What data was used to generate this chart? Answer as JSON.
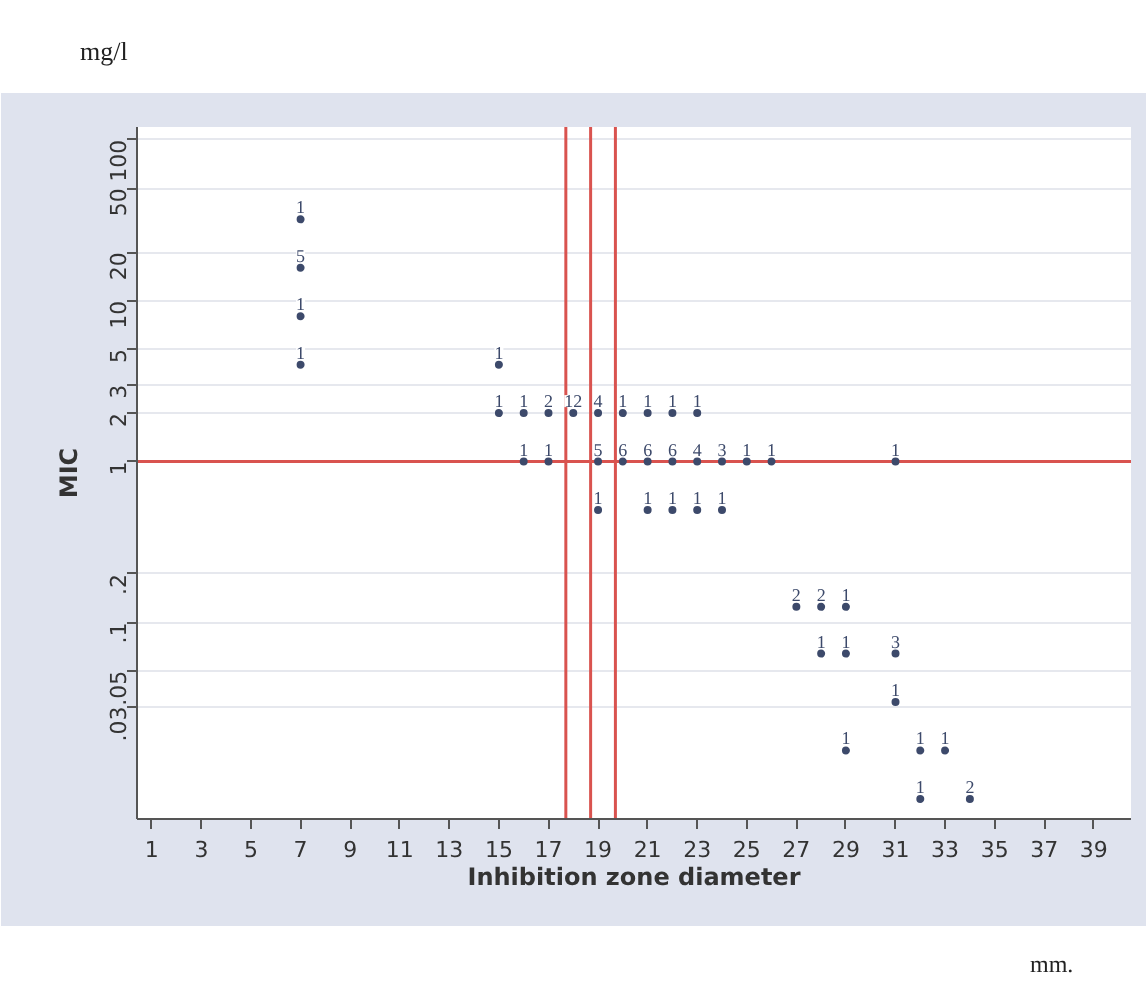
{
  "chart_data": {
    "type": "scatter",
    "xlabel": "Inhibition zone diameter",
    "ylabel": "MIC",
    "annotations": [
      "mg/l",
      "mm.",
      {
        "text": "1",
        "x": 7,
        "y": 32
      },
      {
        "text": "5",
        "x": 7,
        "y": 16
      },
      {
        "text": "1",
        "x": 7,
        "y": 8
      },
      {
        "text": "1",
        "x": 7,
        "y": 4
      },
      {
        "text": "1",
        "x": 15,
        "y": 4
      },
      {
        "text": "1",
        "x": 15,
        "y": 2
      },
      {
        "text": "1",
        "x": 16,
        "y": 2
      },
      {
        "text": "2",
        "x": 17,
        "y": 2
      },
      {
        "text": "12",
        "x": 18,
        "y": 2
      },
      {
        "text": "4",
        "x": 19,
        "y": 2
      },
      {
        "text": "1",
        "x": 20,
        "y": 2
      },
      {
        "text": "1",
        "x": 21,
        "y": 2
      },
      {
        "text": "1",
        "x": 22,
        "y": 2
      },
      {
        "text": "1",
        "x": 23,
        "y": 2
      },
      {
        "text": "1",
        "x": 16,
        "y": 1
      },
      {
        "text": "1",
        "x": 17,
        "y": 1
      },
      {
        "text": "5",
        "x": 19,
        "y": 1
      },
      {
        "text": "6",
        "x": 20,
        "y": 1
      },
      {
        "text": "6",
        "x": 21,
        "y": 1
      },
      {
        "text": "6",
        "x": 22,
        "y": 1
      },
      {
        "text": "4",
        "x": 23,
        "y": 1
      },
      {
        "text": "3",
        "x": 24,
        "y": 1
      },
      {
        "text": "1",
        "x": 25,
        "y": 1
      },
      {
        "text": "1",
        "x": 26,
        "y": 1
      },
      {
        "text": "1",
        "x": 31,
        "y": 1
      },
      {
        "text": "1",
        "x": 19,
        "y": 0.5
      },
      {
        "text": "1",
        "x": 21,
        "y": 0.5
      },
      {
        "text": "1",
        "x": 22,
        "y": 0.5
      },
      {
        "text": "1",
        "x": 23,
        "y": 0.5
      },
      {
        "text": "1",
        "x": 24,
        "y": 0.5
      },
      {
        "text": "2",
        "x": 27,
        "y": 0.125
      },
      {
        "text": "2",
        "x": 28,
        "y": 0.125
      },
      {
        "text": "1",
        "x": 29,
        "y": 0.125
      },
      {
        "text": "1",
        "x": 28,
        "y": 0.064
      },
      {
        "text": "1",
        "x": 29,
        "y": 0.064
      },
      {
        "text": "3",
        "x": 31,
        "y": 0.064
      },
      {
        "text": "1",
        "x": 31,
        "y": 0.032
      },
      {
        "text": "1",
        "x": 29,
        "y": 0.016
      },
      {
        "text": "1",
        "x": 32,
        "y": 0.016
      },
      {
        "text": "1",
        "x": 33,
        "y": 0.016
      },
      {
        "text": "1",
        "x": 32,
        "y": 0.008
      },
      {
        "text": "2",
        "x": 34,
        "y": 0.008
      }
    ],
    "x": [
      7,
      7,
      7,
      7,
      15,
      15,
      16,
      17,
      18,
      19,
      20,
      21,
      22,
      23,
      16,
      17,
      19,
      20,
      21,
      22,
      23,
      24,
      25,
      26,
      31,
      19,
      21,
      22,
      23,
      24,
      27,
      28,
      29,
      28,
      29,
      31,
      31,
      29,
      32,
      33,
      32,
      34
    ],
    "values": [
      32,
      16,
      8,
      4,
      4,
      2,
      2,
      2,
      2,
      2,
      2,
      2,
      2,
      2,
      1,
      1,
      1,
      1,
      1,
      1,
      1,
      1,
      1,
      1,
      1,
      0.5,
      0.5,
      0.5,
      0.5,
      0.5,
      0.125,
      0.125,
      0.125,
      0.064,
      0.064,
      0.064,
      0.032,
      0.016,
      0.016,
      0.016,
      0.008,
      0.008
    ],
    "color": "#3d4a6b",
    "marker": "circle",
    "log": "y",
    "xlim": [
      0.4,
      40.5
    ],
    "ylim": [
      0.006,
      120
    ],
    "xticks": [
      1,
      3,
      5,
      7,
      9,
      11,
      13,
      15,
      17,
      19,
      21,
      23,
      25,
      27,
      29,
      31,
      33,
      35,
      37,
      39
    ],
    "yticks": [
      {
        "value": 0.03,
        "label": ".03"
      },
      {
        "value": 0.05,
        "label": ".05"
      },
      {
        "value": 0.1,
        "label": ".1"
      },
      {
        "value": 0.2,
        "label": ".2"
      },
      1,
      2,
      3,
      5,
      10,
      20,
      50,
      100
    ],
    "grid": "y",
    "ref_lines": [
      {
        "axis": "y",
        "value": 1,
        "color": "#d9534f"
      },
      {
        "axis": "x",
        "value": 17.7,
        "color": "#d9534f"
      },
      {
        "axis": "x",
        "value": 18.7,
        "color": "#d9534f"
      },
      {
        "axis": "x",
        "value": 19.7,
        "color": "#d9534f"
      }
    ]
  }
}
